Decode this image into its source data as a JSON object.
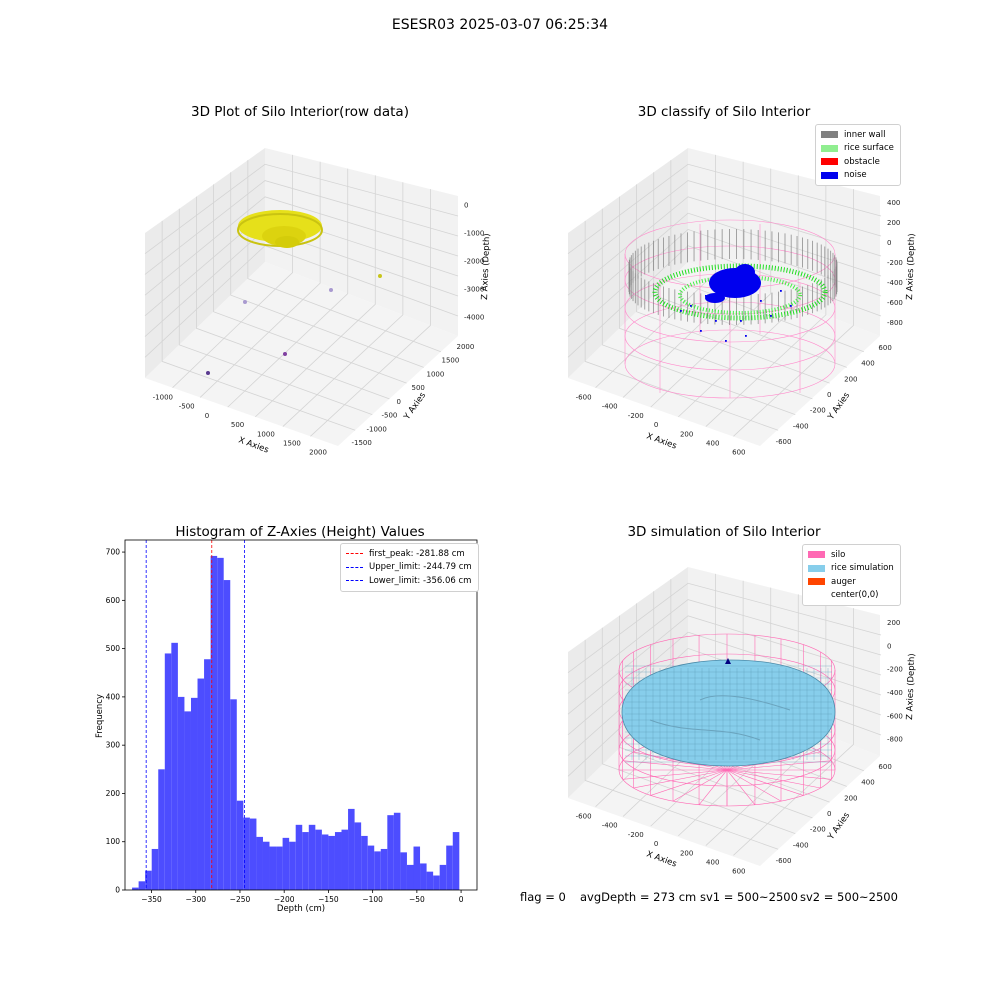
{
  "figure_title": "ESESR03 2025-03-07 06:25:34",
  "footer": {
    "flag": "flag = 0",
    "avg_depth": "avgDepth = 273 cm",
    "sv1": "sv1 = 500~2500",
    "sv2": "sv2 = 500~2500"
  },
  "colors": {
    "point_yellow": "#e6e01a",
    "inner_wall": "#808080",
    "rice_surface": "#90ee90",
    "rice_points": "#00ee00",
    "obstacle": "#ff0000",
    "noise": "#0000ee",
    "silo": "#ff69b4",
    "rice_simulation": "#87ceeb",
    "auger": "#ff4500",
    "hist_bar": "#4d4dff",
    "first_peak": "#ff0000",
    "limits": "#0000ff"
  },
  "chart_data": [
    {
      "type": "scatter3d",
      "title": "3D Plot of Silo Interior(row data)",
      "xlabel": "X Axies",
      "ylabel": "Y Axies",
      "zlabel": "Z Axies (Depth)",
      "xticks": [
        "-1000",
        "-500",
        "0",
        "500",
        "1000",
        "1500",
        "2000"
      ],
      "yticks": [
        "-1500",
        "-1000",
        "-500",
        "0",
        "500",
        "1000",
        "1500",
        "2000"
      ],
      "zticks": [
        "0",
        "-1000",
        "-2000",
        "-3000",
        "-4000"
      ],
      "outlier_points": [
        {
          "color": "#c8c51a"
        },
        {
          "color": "#a99ad0"
        },
        {
          "color": "#a99ad0"
        },
        {
          "color": "#8040a0"
        },
        {
          "color": "#5a3a90"
        }
      ]
    },
    {
      "type": "scatter3d",
      "title": "3D classify of Silo Interior",
      "xlabel": "X Axies",
      "ylabel": "Y Axies",
      "zlabel": "Z Axies (Depth)",
      "xticks": [
        "-600",
        "-400",
        "-200",
        "0",
        "200",
        "400",
        "600"
      ],
      "yticks": [
        "-600",
        "-400",
        "-200",
        "0",
        "200",
        "400",
        "600"
      ],
      "zticks": [
        "400",
        "200",
        "0",
        "-200",
        "-400",
        "-600",
        "-800"
      ],
      "legend": [
        "inner wall",
        "rice surface",
        "obstacle",
        "noise"
      ]
    },
    {
      "type": "bar",
      "title": "Histogram of Z-Axies (Height) Values",
      "xlabel": "Depth (cm)",
      "ylabel": "Frequency",
      "xlim": [
        -380,
        18
      ],
      "ylim": [
        0,
        725
      ],
      "xticks": [
        -350,
        -300,
        -250,
        -200,
        -150,
        -100,
        -50,
        0
      ],
      "yticks": [
        0,
        100,
        200,
        300,
        400,
        500,
        600,
        700
      ],
      "bin_start": -372,
      "bin_width": 7.4,
      "values": [
        5,
        18,
        40,
        85,
        250,
        490,
        512,
        400,
        370,
        398,
        438,
        478,
        692,
        688,
        642,
        395,
        185,
        150,
        148,
        110,
        100,
        90,
        90,
        108,
        100,
        135,
        120,
        135,
        125,
        115,
        112,
        120,
        125,
        168,
        140,
        112,
        92,
        80,
        85,
        155,
        160,
        78,
        52,
        90,
        55,
        38,
        30,
        52,
        92,
        120
      ],
      "vlines": [
        {
          "label": "first_peak: -281.88 cm",
          "x": -281.88,
          "color": "#ff0000"
        },
        {
          "label": "Upper_limit: -244.79 cm",
          "x": -244.79,
          "color": "#0000ff"
        },
        {
          "label": "Lower_limit: -356.06 cm",
          "x": -356.06,
          "color": "#0000ff"
        }
      ]
    },
    {
      "type": "surface3d",
      "title": "3D simulation of Silo Interior",
      "xlabel": "X Axies",
      "ylabel": "Y Axies",
      "zlabel": "Z Axies (Depth)",
      "xticks": [
        "-600",
        "-400",
        "-200",
        "0",
        "200",
        "400",
        "600"
      ],
      "yticks": [
        "-600",
        "-400",
        "-200",
        "0",
        "200",
        "400",
        "600"
      ],
      "zticks": [
        "200",
        "0",
        "-200",
        "-400",
        "-600",
        "-800"
      ],
      "legend": [
        "silo",
        "rice simulation",
        "auger",
        "center(0,0)"
      ]
    }
  ]
}
